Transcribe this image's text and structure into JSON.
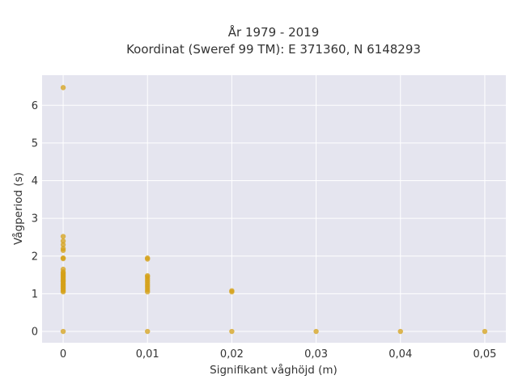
{
  "chart_data": {
    "type": "scatter",
    "title_line1": "År 1979 - 2019",
    "title_line2": "Koordinat (Sweref 99 TM): E 371360, N 6148293",
    "xlabel": "Signifikant våghöjd (m)",
    "ylabel": "Vågperiod (s)",
    "xlim": [
      -0.0025,
      0.0525
    ],
    "ylim": [
      -0.3,
      6.8
    ],
    "x_ticks": [
      {
        "value": 0,
        "label": "0"
      },
      {
        "value": 0.01,
        "label": "0,01"
      },
      {
        "value": 0.02,
        "label": "0,02"
      },
      {
        "value": 0.03,
        "label": "0,03"
      },
      {
        "value": 0.04,
        "label": "0,04"
      },
      {
        "value": 0.05,
        "label": "0,05"
      }
    ],
    "y_ticks": [
      {
        "value": 0,
        "label": "0"
      },
      {
        "value": 1,
        "label": "1"
      },
      {
        "value": 2,
        "label": "2"
      },
      {
        "value": 3,
        "label": "3"
      },
      {
        "value": 4,
        "label": "4"
      },
      {
        "value": 5,
        "label": "5"
      },
      {
        "value": 6,
        "label": "6"
      }
    ],
    "grid": true,
    "colors": {
      "background": "#e5e5ef",
      "grid": "#ffffff",
      "marker": "#d4a017"
    },
    "series": [
      {
        "points": [
          [
            0,
            6.47
          ],
          [
            0,
            2.52
          ],
          [
            0,
            2.4
          ],
          [
            0,
            2.3
          ],
          [
            0,
            2.2
          ],
          [
            0,
            2.15
          ],
          [
            0,
            1.95
          ],
          [
            0,
            1.93
          ],
          [
            0,
            1.65
          ],
          [
            0,
            1.58
          ],
          [
            0,
            1.55
          ],
          [
            0,
            1.52
          ],
          [
            0,
            1.48
          ],
          [
            0,
            1.45
          ],
          [
            0,
            1.42
          ],
          [
            0,
            1.38
          ],
          [
            0,
            1.35
          ],
          [
            0,
            1.32
          ],
          [
            0,
            1.28
          ],
          [
            0,
            1.25
          ],
          [
            0,
            1.22
          ],
          [
            0,
            1.18
          ],
          [
            0,
            1.15
          ],
          [
            0,
            1.12
          ],
          [
            0,
            1.08
          ],
          [
            0,
            1.05
          ],
          [
            0,
            0
          ],
          [
            0.01,
            1.95
          ],
          [
            0.01,
            1.92
          ],
          [
            0.01,
            1.48
          ],
          [
            0.01,
            1.45
          ],
          [
            0.01,
            1.4
          ],
          [
            0.01,
            1.35
          ],
          [
            0.01,
            1.3
          ],
          [
            0.01,
            1.25
          ],
          [
            0.01,
            1.2
          ],
          [
            0.01,
            1.15
          ],
          [
            0.01,
            1.1
          ],
          [
            0.01,
            1.05
          ],
          [
            0.01,
            0
          ],
          [
            0.02,
            1.08
          ],
          [
            0.02,
            1.05
          ],
          [
            0.02,
            0
          ],
          [
            0.03,
            0
          ],
          [
            0.04,
            0
          ],
          [
            0.05,
            0
          ]
        ]
      }
    ]
  }
}
